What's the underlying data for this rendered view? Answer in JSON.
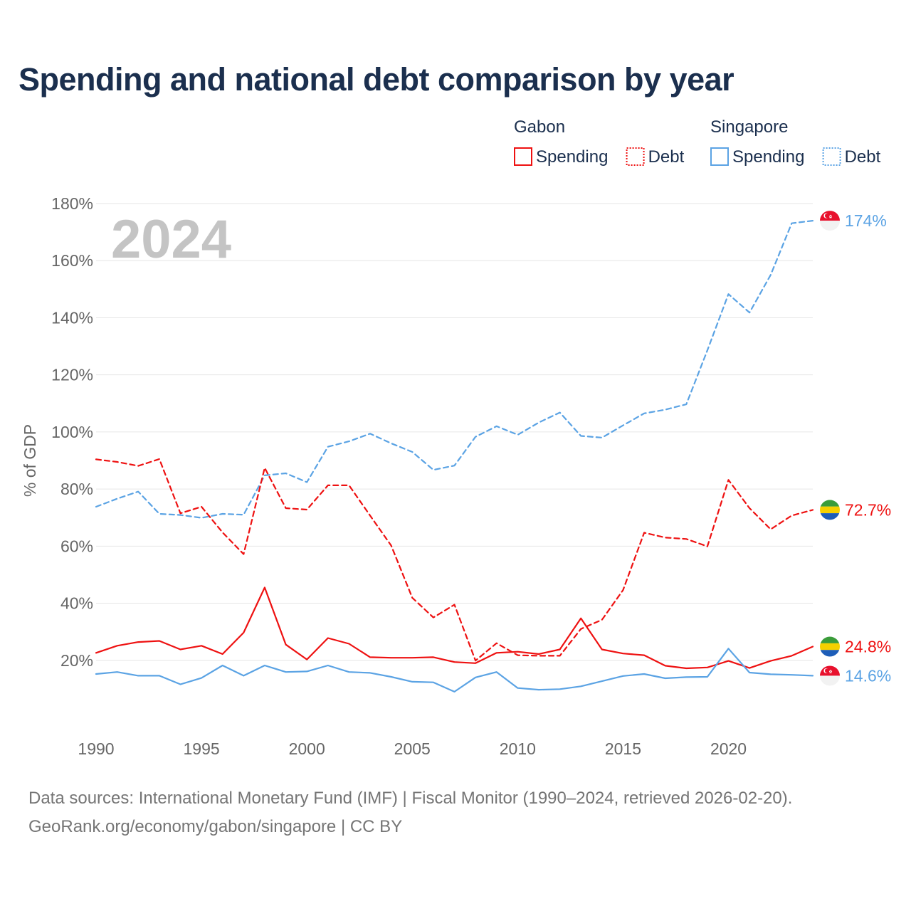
{
  "chart_data": {
    "type": "line",
    "title": "Spending and national debt comparison by year",
    "ylabel": "% of GDP",
    "xlabel": "",
    "year_label": "2024",
    "xlim": [
      1990,
      2024
    ],
    "ylim": [
      0,
      180
    ],
    "x_ticks": [
      1990,
      1995,
      2000,
      2005,
      2010,
      2015,
      2020
    ],
    "x_tick_labels": [
      "1990",
      "1995",
      "2000",
      "2005",
      "2010",
      "2015",
      "2020"
    ],
    "y_ticks": [
      20,
      40,
      60,
      80,
      100,
      120,
      140,
      160,
      180
    ],
    "y_tick_labels": [
      "20%",
      "40%",
      "60%",
      "80%",
      "100%",
      "120%",
      "140%",
      "160%",
      "180%"
    ],
    "x": [
      1990,
      1991,
      1992,
      1993,
      1994,
      1995,
      1996,
      1997,
      1998,
      1999,
      2000,
      2001,
      2002,
      2003,
      2004,
      2005,
      2006,
      2007,
      2008,
      2009,
      2010,
      2011,
      2012,
      2013,
      2014,
      2015,
      2016,
      2017,
      2018,
      2019,
      2020,
      2021,
      2022,
      2023,
      2024
    ],
    "legend": {
      "groups": [
        {
          "country": "Gabon",
          "color": "#ee1111",
          "items": [
            {
              "label": "Spending",
              "style": "solid"
            },
            {
              "label": "Debt",
              "style": "dotted"
            }
          ]
        },
        {
          "country": "Singapore",
          "color": "#5ba3e4",
          "items": [
            {
              "label": "Spending",
              "style": "solid"
            },
            {
              "label": "Debt",
              "style": "dotted"
            }
          ]
        }
      ]
    },
    "series": [
      {
        "name": "Singapore Debt",
        "country": "Singapore",
        "metric": "Debt",
        "color": "#5ba3e4",
        "dash": true,
        "end_label": "174%",
        "values": [
          73.8,
          76.6,
          79.1,
          71.3,
          70.9,
          69.9,
          71.3,
          71.0,
          84.8,
          85.5,
          82.4,
          94.8,
          96.7,
          99.4,
          96.0,
          93.0,
          86.7,
          88.2,
          98.3,
          102.0,
          99.0,
          103.3,
          106.8,
          98.6,
          98.0,
          102.3,
          106.5,
          107.8,
          109.7,
          128.6,
          148.3,
          141.8,
          155.0,
          173.1,
          174.0
        ]
      },
      {
        "name": "Gabon Debt",
        "country": "Gabon",
        "metric": "Debt",
        "color": "#ee1111",
        "dash": true,
        "end_label": "72.7%",
        "values": [
          90.4,
          89.5,
          88.1,
          90.5,
          71.5,
          73.8,
          64.8,
          57.2,
          87.4,
          73.3,
          72.8,
          81.3,
          81.3,
          70.7,
          60.2,
          41.9,
          35.0,
          39.5,
          19.9,
          26.0,
          21.8,
          21.6,
          21.6,
          31.0,
          34.2,
          44.6,
          64.7,
          63.0,
          62.5,
          59.9,
          83.2,
          73.3,
          65.9,
          70.7,
          72.7
        ]
      },
      {
        "name": "Gabon Spending",
        "country": "Gabon",
        "metric": "Spending",
        "color": "#ee1111",
        "dash": false,
        "end_label": "24.8%",
        "values": [
          22.6,
          25.1,
          26.4,
          26.8,
          23.8,
          25.1,
          22.2,
          29.7,
          45.5,
          25.5,
          20.3,
          27.8,
          25.8,
          21.1,
          20.9,
          20.9,
          21.1,
          19.4,
          19.0,
          22.6,
          23.0,
          22.2,
          23.8,
          34.7,
          23.8,
          22.4,
          21.8,
          18.1,
          17.2,
          17.5,
          19.8,
          17.3,
          19.8,
          21.6,
          24.8
        ]
      },
      {
        "name": "Singapore Spending",
        "country": "Singapore",
        "metric": "Spending",
        "color": "#5ba3e4",
        "dash": false,
        "end_label": "14.6%",
        "values": [
          15.2,
          15.9,
          14.6,
          14.6,
          11.6,
          13.8,
          18.2,
          14.6,
          18.2,
          15.9,
          16.1,
          18.2,
          15.9,
          15.6,
          14.2,
          12.5,
          12.3,
          9.0,
          14.0,
          15.9,
          10.3,
          9.7,
          9.9,
          10.9,
          12.7,
          14.5,
          15.2,
          13.7,
          14.1,
          14.2,
          24.1,
          15.7,
          15.1,
          14.9,
          14.6
        ]
      }
    ]
  },
  "footer": {
    "line1": "Data sources: International Monetary Fund (IMF) | Fiscal Monitor (1990–2024, retrieved 2026-02-20).",
    "line2": "GeoRank.org/economy/gabon/singapore | CC BY"
  },
  "colors": {
    "title": "#1b2f4e",
    "gabon": "#ee1111",
    "singapore": "#5ba3e4",
    "grid": "#e6e6e6",
    "axis_text": "#666666",
    "year_watermark": "#c4c4c4",
    "gabon_flag": [
      "#3a9c3a",
      "#f5d000",
      "#1d5db8"
    ],
    "singapore_flag": [
      "#e8112d",
      "#f2f2f2"
    ]
  },
  "icons": {
    "gabon": "gabon-flag-icon",
    "singapore": "singapore-flag-icon"
  }
}
